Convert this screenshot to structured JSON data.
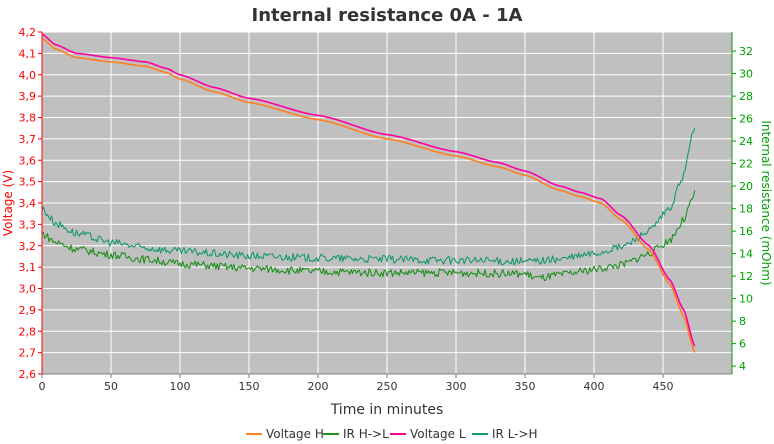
{
  "chart_data": {
    "type": "line",
    "title": "Internal resistance  0A - 1A",
    "xlabel": "Time in minutes",
    "ylabel_left": "Voltage (V)",
    "ylabel_right": "Internal resistance (mOhm)",
    "xlim": [
      0,
      500
    ],
    "ylim_left": [
      2.6,
      4.2
    ],
    "ylim_right": [
      3.3,
      33.7
    ],
    "x_ticks": [
      "0",
      "50",
      "100",
      "150",
      "200",
      "250",
      "300",
      "350",
      "400",
      "450"
    ],
    "y_left_ticks": [
      "4,2",
      "4,1",
      "4,0",
      "3,9",
      "3,8",
      "3,7",
      "3,6",
      "3,5",
      "3,4",
      "3,3",
      "3,2",
      "3,1",
      "3,0",
      "2,9",
      "2,8",
      "2,7",
      "2,6"
    ],
    "y_right_ticks": [
      "32",
      "30",
      "28",
      "26",
      "24",
      "22",
      "20",
      "18",
      "16",
      "14",
      "12",
      "10",
      "8",
      "6",
      "4"
    ],
    "grid": true,
    "background": "#c0c0c0",
    "legend_position": "bottom",
    "series": [
      {
        "name": "Voltage H",
        "axis": "left",
        "color": "#ff7f1e",
        "x": [
          0,
          10,
          25,
          50,
          75,
          90,
          100,
          125,
          150,
          200,
          250,
          300,
          330,
          350,
          375,
          390,
          405,
          420,
          440,
          455,
          465,
          473
        ],
        "y": [
          4.17,
          4.12,
          4.08,
          4.06,
          4.04,
          4.01,
          3.98,
          3.92,
          3.87,
          3.79,
          3.7,
          3.62,
          3.57,
          3.53,
          3.46,
          3.43,
          3.4,
          3.32,
          3.18,
          3.02,
          2.87,
          2.7
        ]
      },
      {
        "name": "IR H->L",
        "axis": "right",
        "color": "#209020",
        "x": [
          0,
          10,
          25,
          50,
          75,
          100,
          150,
          200,
          250,
          300,
          350,
          360,
          375,
          400,
          420,
          440,
          455,
          465,
          473
        ],
        "y": [
          15.8,
          15.0,
          14.4,
          13.9,
          13.5,
          13.1,
          12.7,
          12.4,
          12.3,
          12.3,
          12.2,
          11.8,
          12.1,
          12.6,
          13.0,
          14.0,
          15.2,
          17.0,
          19.3
        ]
      },
      {
        "name": "Voltage L",
        "axis": "left",
        "color": "#ff00a0",
        "x": [
          0,
          10,
          25,
          50,
          75,
          90,
          100,
          125,
          150,
          200,
          250,
          300,
          330,
          350,
          375,
          390,
          405,
          420,
          440,
          455,
          465,
          473
        ],
        "y": [
          4.19,
          4.14,
          4.1,
          4.08,
          4.06,
          4.03,
          4.0,
          3.94,
          3.89,
          3.81,
          3.72,
          3.64,
          3.59,
          3.55,
          3.48,
          3.45,
          3.42,
          3.34,
          3.2,
          3.04,
          2.9,
          2.73
        ]
      },
      {
        "name": "IR L->H",
        "axis": "right",
        "color": "#189870",
        "x": [
          0,
          10,
          25,
          50,
          75,
          100,
          150,
          200,
          250,
          300,
          350,
          375,
          400,
          420,
          440,
          455,
          465,
          473
        ],
        "y": [
          18.0,
          16.7,
          15.8,
          15.0,
          14.5,
          14.2,
          13.8,
          13.6,
          13.5,
          13.4,
          13.3,
          13.5,
          14.0,
          14.6,
          16.0,
          18.0,
          21.0,
          25.5
        ]
      }
    ]
  }
}
